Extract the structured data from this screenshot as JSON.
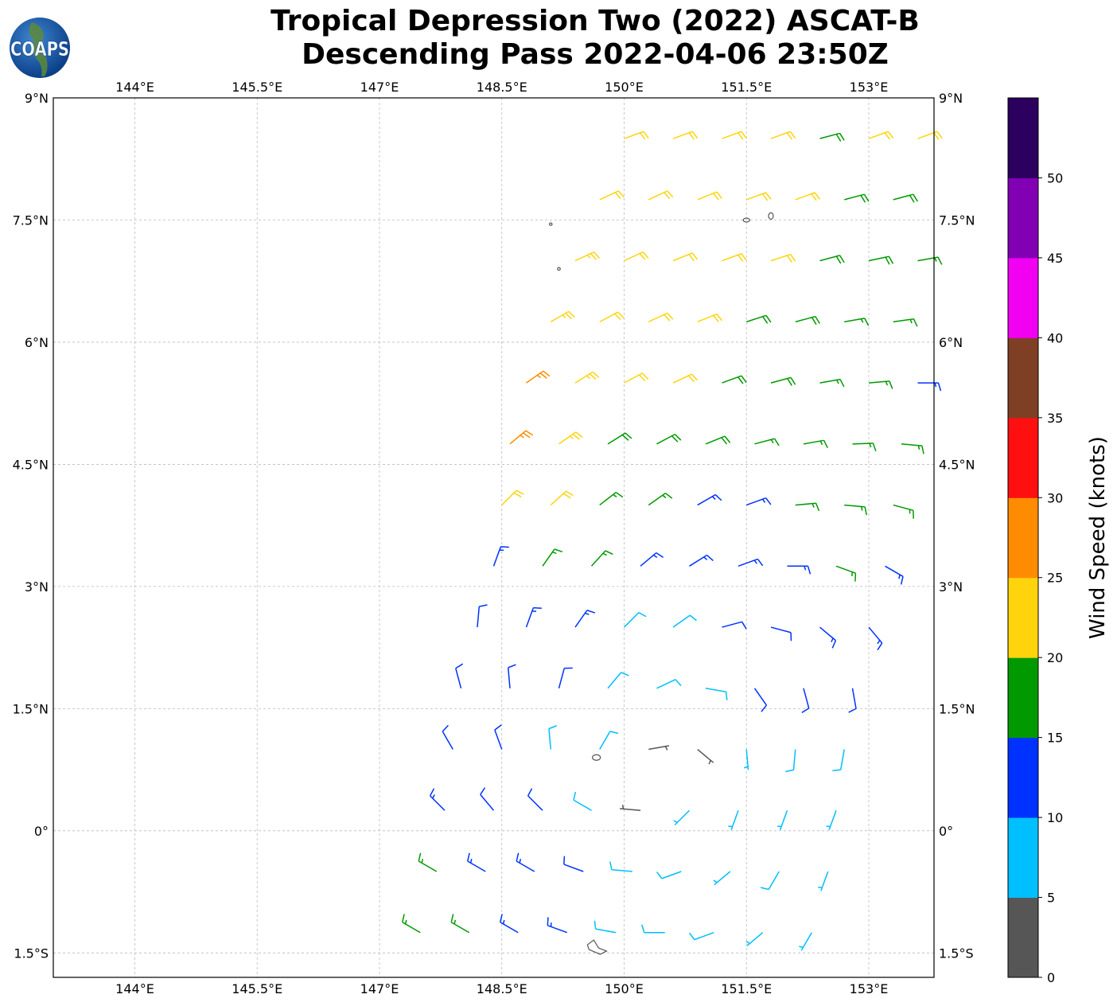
{
  "title": {
    "line1": "Tropical Depression Two (2022) ASCAT-B",
    "line2": "Descending Pass 2022-04-06 23:50Z"
  },
  "logo": {
    "text": "COAPS",
    "icon": "globe-icon"
  },
  "chart_data": {
    "type": "wind-barb-map",
    "title": "Tropical Depression Two (2022) ASCAT-B Descending Pass 2022-04-06 23:50Z",
    "lon_range": [
      143.0,
      153.8
    ],
    "lat_range": [
      -1.8,
      9.0
    ],
    "grid": true,
    "lon_ticks": [
      "144°E",
      "145.5°E",
      "147°E",
      "148.5°E",
      "150°E",
      "151.5°E",
      "153°E"
    ],
    "lon_tick_values": [
      144,
      145.5,
      147,
      148.5,
      150,
      151.5,
      153
    ],
    "lat_ticks": [
      "9°N",
      "7.5°N",
      "6°N",
      "4.5°N",
      "3°N",
      "1.5°N",
      "0°",
      "1.5°S"
    ],
    "lat_tick_values": [
      9,
      7.5,
      6,
      4.5,
      3,
      1.5,
      0,
      -1.5
    ],
    "colorbar": {
      "label": "Wind Speed (knots)",
      "ticks": [
        "0",
        "5",
        "10",
        "15",
        "20",
        "25",
        "30",
        "35",
        "40",
        "45",
        "50"
      ],
      "range": [
        0,
        55
      ],
      "bins": [
        0,
        5,
        10,
        15,
        20,
        25,
        30,
        35,
        40,
        45,
        50,
        55
      ],
      "colors": [
        "#565656",
        "#00bfff",
        "#0032ff",
        "#009a00",
        "#ffd40c",
        "#ff8c00",
        "#ff1010",
        "#7f3f25",
        "#f200f2",
        "#8200b4",
        "#2b005f"
      ]
    },
    "barb_fields": [
      "lat",
      "lon",
      "speed_kt",
      "direction_from_deg"
    ],
    "barbs": [
      [
        8.5,
        150.0,
        22,
        70
      ],
      [
        8.5,
        150.6,
        22,
        70
      ],
      [
        8.5,
        151.2,
        22,
        70
      ],
      [
        8.5,
        151.8,
        22,
        70
      ],
      [
        8.5,
        152.4,
        18,
        75
      ],
      [
        8.5,
        153.0,
        21,
        70
      ],
      [
        8.5,
        153.6,
        21,
        70
      ],
      [
        7.75,
        149.7,
        22,
        65
      ],
      [
        7.75,
        150.3,
        22,
        65
      ],
      [
        7.75,
        150.9,
        22,
        68
      ],
      [
        7.75,
        151.5,
        22,
        70
      ],
      [
        7.75,
        152.1,
        21,
        70
      ],
      [
        7.75,
        152.7,
        18,
        75
      ],
      [
        7.75,
        153.3,
        18,
        75
      ],
      [
        7.0,
        149.4,
        23,
        65
      ],
      [
        7.0,
        150.0,
        22,
        65
      ],
      [
        7.0,
        150.6,
        22,
        68
      ],
      [
        7.0,
        151.2,
        21,
        70
      ],
      [
        7.0,
        151.8,
        21,
        72
      ],
      [
        7.0,
        152.4,
        18,
        75
      ],
      [
        7.0,
        153.0,
        18,
        78
      ],
      [
        7.0,
        153.6,
        17,
        80
      ],
      [
        6.25,
        149.1,
        23,
        60
      ],
      [
        6.25,
        149.7,
        22,
        62
      ],
      [
        6.25,
        150.3,
        22,
        65
      ],
      [
        6.25,
        150.9,
        22,
        68
      ],
      [
        6.25,
        151.5,
        19,
        72
      ],
      [
        6.25,
        152.1,
        18,
        75
      ],
      [
        6.25,
        152.7,
        17,
        80
      ],
      [
        6.25,
        153.3,
        17,
        82
      ],
      [
        5.5,
        148.8,
        27,
        55
      ],
      [
        5.5,
        149.4,
        24,
        58
      ],
      [
        5.5,
        150.0,
        22,
        62
      ],
      [
        5.5,
        150.6,
        21,
        65
      ],
      [
        5.5,
        151.2,
        19,
        70
      ],
      [
        5.5,
        151.8,
        18,
        75
      ],
      [
        5.5,
        152.4,
        17,
        80
      ],
      [
        5.5,
        153.0,
        17,
        85
      ],
      [
        5.5,
        153.6,
        14,
        90
      ],
      [
        4.75,
        148.6,
        26,
        50
      ],
      [
        4.75,
        149.2,
        23,
        55
      ],
      [
        4.75,
        149.8,
        19,
        58
      ],
      [
        4.75,
        150.4,
        18,
        62
      ],
      [
        4.75,
        151.0,
        18,
        68
      ],
      [
        4.75,
        151.6,
        17,
        75
      ],
      [
        4.75,
        152.2,
        17,
        80
      ],
      [
        4.75,
        152.8,
        17,
        88
      ],
      [
        4.75,
        153.4,
        16,
        95
      ],
      [
        4.0,
        148.5,
        21,
        45
      ],
      [
        4.0,
        149.1,
        21,
        48
      ],
      [
        4.0,
        149.7,
        17,
        52
      ],
      [
        4.0,
        150.3,
        17,
        55
      ],
      [
        4.0,
        150.9,
        14,
        60
      ],
      [
        4.0,
        151.5,
        14,
        70
      ],
      [
        4.0,
        152.1,
        16,
        85
      ],
      [
        4.0,
        152.7,
        17,
        95
      ],
      [
        4.0,
        153.3,
        17,
        105
      ],
      [
        3.25,
        148.4,
        13,
        20
      ],
      [
        3.25,
        149.0,
        16,
        35
      ],
      [
        3.25,
        149.6,
        16,
        42
      ],
      [
        3.25,
        150.2,
        14,
        50
      ],
      [
        3.25,
        150.8,
        13,
        58
      ],
      [
        3.25,
        151.4,
        13,
        70
      ],
      [
        3.25,
        152.0,
        14,
        90
      ],
      [
        3.25,
        152.6,
        16,
        110
      ],
      [
        3.25,
        153.2,
        14,
        120
      ],
      [
        2.5,
        148.2,
        12,
        5
      ],
      [
        2.5,
        148.8,
        13,
        20
      ],
      [
        2.5,
        149.4,
        13,
        35
      ],
      [
        2.5,
        150.0,
        8,
        45
      ],
      [
        2.5,
        150.6,
        8,
        55
      ],
      [
        2.5,
        151.2,
        11,
        75
      ],
      [
        2.5,
        151.8,
        12,
        105
      ],
      [
        2.5,
        152.4,
        13,
        130
      ],
      [
        2.5,
        153.0,
        13,
        140
      ],
      [
        1.75,
        148.0,
        12,
        345
      ],
      [
        1.75,
        148.6,
        12,
        355
      ],
      [
        1.75,
        149.2,
        11,
        15
      ],
      [
        1.75,
        149.8,
        9,
        40
      ],
      [
        1.75,
        150.4,
        8,
        65
      ],
      [
        1.75,
        151.0,
        8,
        100
      ],
      [
        1.75,
        151.6,
        10,
        145
      ],
      [
        1.75,
        152.2,
        11,
        165
      ],
      [
        1.75,
        152.8,
        11,
        170
      ],
      [
        1.0,
        147.9,
        12,
        330
      ],
      [
        1.0,
        148.5,
        12,
        340
      ],
      [
        1.0,
        149.1,
        9,
        355
      ],
      [
        1.0,
        149.7,
        8,
        30
      ],
      [
        1.0,
        150.3,
        4,
        80
      ],
      [
        1.0,
        150.9,
        3,
        130
      ],
      [
        1.0,
        151.5,
        7,
        175
      ],
      [
        1.0,
        152.1,
        8,
        185
      ],
      [
        1.0,
        152.7,
        8,
        190
      ],
      [
        0.25,
        147.8,
        13,
        315
      ],
      [
        0.25,
        148.4,
        12,
        320
      ],
      [
        0.25,
        149.0,
        11,
        315
      ],
      [
        0.25,
        149.6,
        9,
        300
      ],
      [
        0.25,
        150.2,
        4,
        275
      ],
      [
        0.25,
        150.8,
        6,
        225
      ],
      [
        0.25,
        151.4,
        7,
        200
      ],
      [
        0.25,
        152.0,
        7,
        200
      ],
      [
        0.25,
        152.6,
        7,
        200
      ],
      [
        -0.5,
        147.7,
        16,
        300
      ],
      [
        -0.5,
        148.3,
        14,
        300
      ],
      [
        -0.5,
        148.9,
        13,
        300
      ],
      [
        -0.5,
        149.5,
        12,
        290
      ],
      [
        -0.5,
        150.1,
        9,
        275
      ],
      [
        -0.5,
        150.7,
        8,
        250
      ],
      [
        -0.5,
        151.3,
        7,
        230
      ],
      [
        -0.5,
        151.9,
        8,
        210
      ],
      [
        -0.5,
        152.5,
        7,
        200
      ],
      [
        -1.25,
        147.5,
        17,
        300
      ],
      [
        -1.25,
        148.1,
        16,
        300
      ],
      [
        -1.25,
        148.7,
        13,
        300
      ],
      [
        -1.25,
        149.3,
        14,
        290
      ],
      [
        -1.25,
        149.9,
        9,
        280
      ],
      [
        -1.25,
        150.5,
        8,
        270
      ],
      [
        -1.25,
        151.1,
        8,
        250
      ],
      [
        -1.25,
        151.7,
        7,
        230
      ],
      [
        -1.25,
        152.3,
        6,
        210
      ]
    ]
  }
}
